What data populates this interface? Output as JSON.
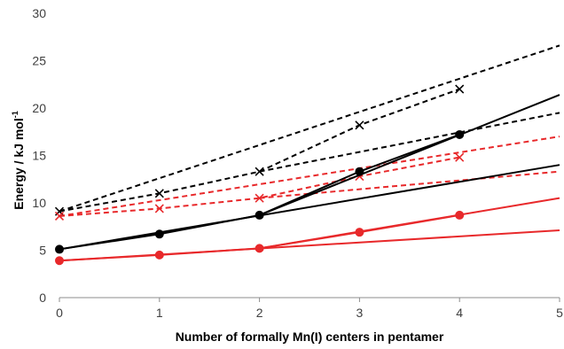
{
  "chart_data": {
    "type": "line",
    "xlabel": "Number of formally Mn(I) centers in pentamer",
    "ylabel": "Energy / kJ mol",
    "ylabel_sup": "-1",
    "xlim": [
      0,
      5
    ],
    "ylim": [
      0,
      30
    ],
    "x_ticks": [
      "0",
      "1",
      "2",
      "3",
      "4",
      "5"
    ],
    "y_ticks": [
      "0",
      "5",
      "10",
      "15",
      "20",
      "25",
      "30"
    ],
    "grid": false,
    "legend": "none",
    "series": [
      {
        "color": "#000000",
        "dash": "dashed",
        "marker": "x",
        "x": [
          0,
          1,
          2,
          3,
          4
        ],
        "y": [
          9.1,
          11.0,
          13.3,
          18.2,
          22.0
        ]
      },
      {
        "color": "#000000",
        "dash": "dashed",
        "marker": "none",
        "x": [
          0,
          5
        ],
        "y": [
          9.1,
          26.6
        ]
      },
      {
        "color": "#000000",
        "dash": "dashed",
        "marker": "none",
        "x": [
          2,
          5
        ],
        "y": [
          13.3,
          19.5
        ]
      },
      {
        "color": "#e8292b",
        "dash": "dashed",
        "marker": "x",
        "x": [
          0,
          1,
          2,
          3,
          4
        ],
        "y": [
          8.6,
          9.4,
          10.5,
          12.8,
          14.8
        ]
      },
      {
        "color": "#e8292b",
        "dash": "dashed",
        "marker": "none",
        "x": [
          0,
          5
        ],
        "y": [
          8.6,
          17.0
        ]
      },
      {
        "color": "#e8292b",
        "dash": "dashed",
        "marker": "none",
        "x": [
          2,
          5
        ],
        "y": [
          10.5,
          13.3
        ]
      },
      {
        "color": "#000000",
        "dash": "solid",
        "marker": "circle",
        "x": [
          0,
          1,
          2,
          3,
          4
        ],
        "y": [
          5.1,
          6.7,
          8.7,
          13.3,
          17.2
        ]
      },
      {
        "color": "#000000",
        "dash": "solid",
        "marker": "none",
        "x": [
          2,
          5
        ],
        "y": [
          8.7,
          21.4
        ]
      },
      {
        "color": "#000000",
        "dash": "solid",
        "marker": "none",
        "x": [
          0,
          5
        ],
        "y": [
          5.1,
          14.0
        ]
      },
      {
        "color": "#e8292b",
        "dash": "solid",
        "marker": "circle",
        "x": [
          0,
          1,
          2,
          3,
          4
        ],
        "y": [
          3.9,
          4.5,
          5.2,
          6.9,
          8.7
        ]
      },
      {
        "color": "#e8292b",
        "dash": "solid",
        "marker": "none",
        "x": [
          2,
          5
        ],
        "y": [
          5.2,
          10.5
        ]
      },
      {
        "color": "#e8292b",
        "dash": "solid",
        "marker": "none",
        "x": [
          0,
          5
        ],
        "y": [
          3.9,
          7.1
        ]
      }
    ]
  }
}
